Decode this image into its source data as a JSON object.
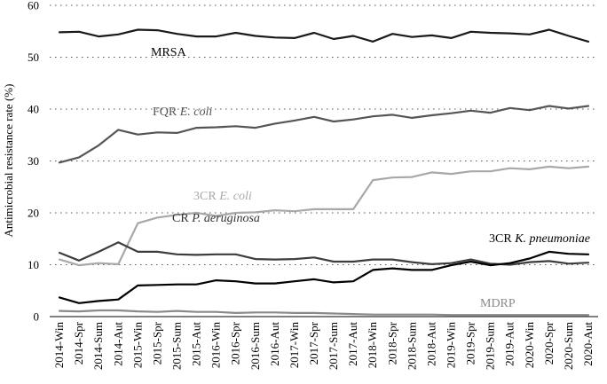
{
  "chart_data": {
    "type": "line",
    "title": "",
    "xlabel": "",
    "ylabel": "Antimicrobial resistance rate (%)",
    "ylim": [
      0,
      60
    ],
    "yticks": [
      "0",
      "10",
      "20",
      "30",
      "40",
      "50",
      "60"
    ],
    "grid": "horizontal-dotted",
    "legend": "inline labels",
    "categories": [
      "2014-Win",
      "2014-Spr",
      "2014-Sum",
      "2014-Aut",
      "2015-Win",
      "2015-Spr",
      "2015-Sum",
      "2015-Aut",
      "2016-Win",
      "2016-Spr",
      "2016-Sum",
      "2016-Aut",
      "2017-Win",
      "2017-Spr",
      "2017-Sum",
      "2017-Aut",
      "2018-Win",
      "2018-Spr",
      "2018-Sum",
      "2018-Aut",
      "2019-Win",
      "2019-Spr",
      "2019-Sum",
      "2019-Aut",
      "2020-Win",
      "2020-Spr",
      "2020-Sum",
      "2020-Aut"
    ],
    "series": [
      {
        "key": "mrsa",
        "name": "MRSA",
        "label_parts": [
          {
            "text": "MRSA",
            "italic": false
          }
        ],
        "color": "#1a1a1a",
        "values": [
          54.8,
          54.9,
          54.0,
          54.4,
          55.3,
          55.2,
          54.5,
          54.0,
          54.0,
          54.7,
          54.1,
          53.8,
          53.7,
          54.7,
          53.5,
          54.1,
          53.0,
          54.5,
          53.9,
          54.2,
          53.7,
          54.9,
          54.7,
          54.6,
          54.4,
          55.3,
          54.1,
          53.0
        ]
      },
      {
        "key": "fqr-e-coli",
        "name": "FQR E. coli",
        "label_parts": [
          {
            "text": "FQR ",
            "italic": false
          },
          {
            "text": "E. coli",
            "italic": true
          }
        ],
        "color": "#555555",
        "values": [
          29.7,
          30.7,
          33.0,
          36.0,
          35.1,
          35.5,
          35.4,
          36.4,
          36.5,
          36.7,
          36.4,
          37.2,
          37.8,
          38.5,
          37.6,
          38.0,
          38.6,
          38.9,
          38.3,
          38.8,
          39.2,
          39.7,
          39.3,
          40.2,
          39.8,
          40.6,
          40.1,
          40.6
        ]
      },
      {
        "key": "3cr-e-coli",
        "name": "3CR E. coli",
        "label_parts": [
          {
            "text": "3CR ",
            "italic": false
          },
          {
            "text": "E. coli",
            "italic": true
          }
        ],
        "color": "#a8a8a8",
        "values": [
          11.0,
          9.9,
          10.3,
          10.1,
          18.0,
          19.1,
          19.6,
          20.0,
          19.4,
          20.0,
          20.1,
          20.5,
          20.3,
          20.7,
          20.7,
          20.7,
          26.3,
          26.8,
          26.9,
          27.8,
          27.5,
          28.0,
          28.0,
          28.6,
          28.4,
          28.9,
          28.6,
          28.9
        ]
      },
      {
        "key": "cr-p-aeruginosa",
        "name": "CR P. aeruginosa",
        "label_parts": [
          {
            "text": "CR ",
            "italic": false
          },
          {
            "text": "P. aeruginosa",
            "italic": true
          }
        ],
        "color": "#3d3d3d",
        "values": [
          12.3,
          10.8,
          12.5,
          14.3,
          12.5,
          12.5,
          12.0,
          11.9,
          12.0,
          12.0,
          11.1,
          11.0,
          11.1,
          11.4,
          10.6,
          10.6,
          11.0,
          11.0,
          10.5,
          10.1,
          10.3,
          11.0,
          10.2,
          10.0,
          10.5,
          10.7,
          10.2,
          10.4
        ]
      },
      {
        "key": "3cr-k-pneumoniae",
        "name": "3CR K. pneumoniae",
        "label_parts": [
          {
            "text": "3CR ",
            "italic": false
          },
          {
            "text": "K. pneumoniae",
            "italic": true
          }
        ],
        "color": "#000000",
        "values": [
          3.7,
          2.6,
          3.0,
          3.3,
          6.0,
          6.1,
          6.2,
          6.2,
          7.0,
          6.8,
          6.4,
          6.4,
          6.8,
          7.2,
          6.6,
          6.8,
          9.0,
          9.3,
          9.0,
          9.0,
          9.9,
          10.6,
          9.9,
          10.3,
          11.2,
          12.5,
          12.1,
          12.0
        ]
      },
      {
        "key": "mdrp",
        "name": "MDRP",
        "label_parts": [
          {
            "text": "MDRP",
            "italic": false
          }
        ],
        "color": "#8a8a8a",
        "values": [
          1.1,
          1.0,
          1.2,
          1.2,
          1.0,
          0.9,
          1.1,
          0.9,
          0.9,
          0.7,
          0.8,
          0.8,
          0.7,
          0.7,
          0.6,
          0.5,
          0.4,
          0.4,
          0.4,
          0.4,
          0.3,
          0.3,
          0.3,
          0.3,
          0.3,
          0.3,
          0.3,
          0.3
        ]
      }
    ]
  }
}
